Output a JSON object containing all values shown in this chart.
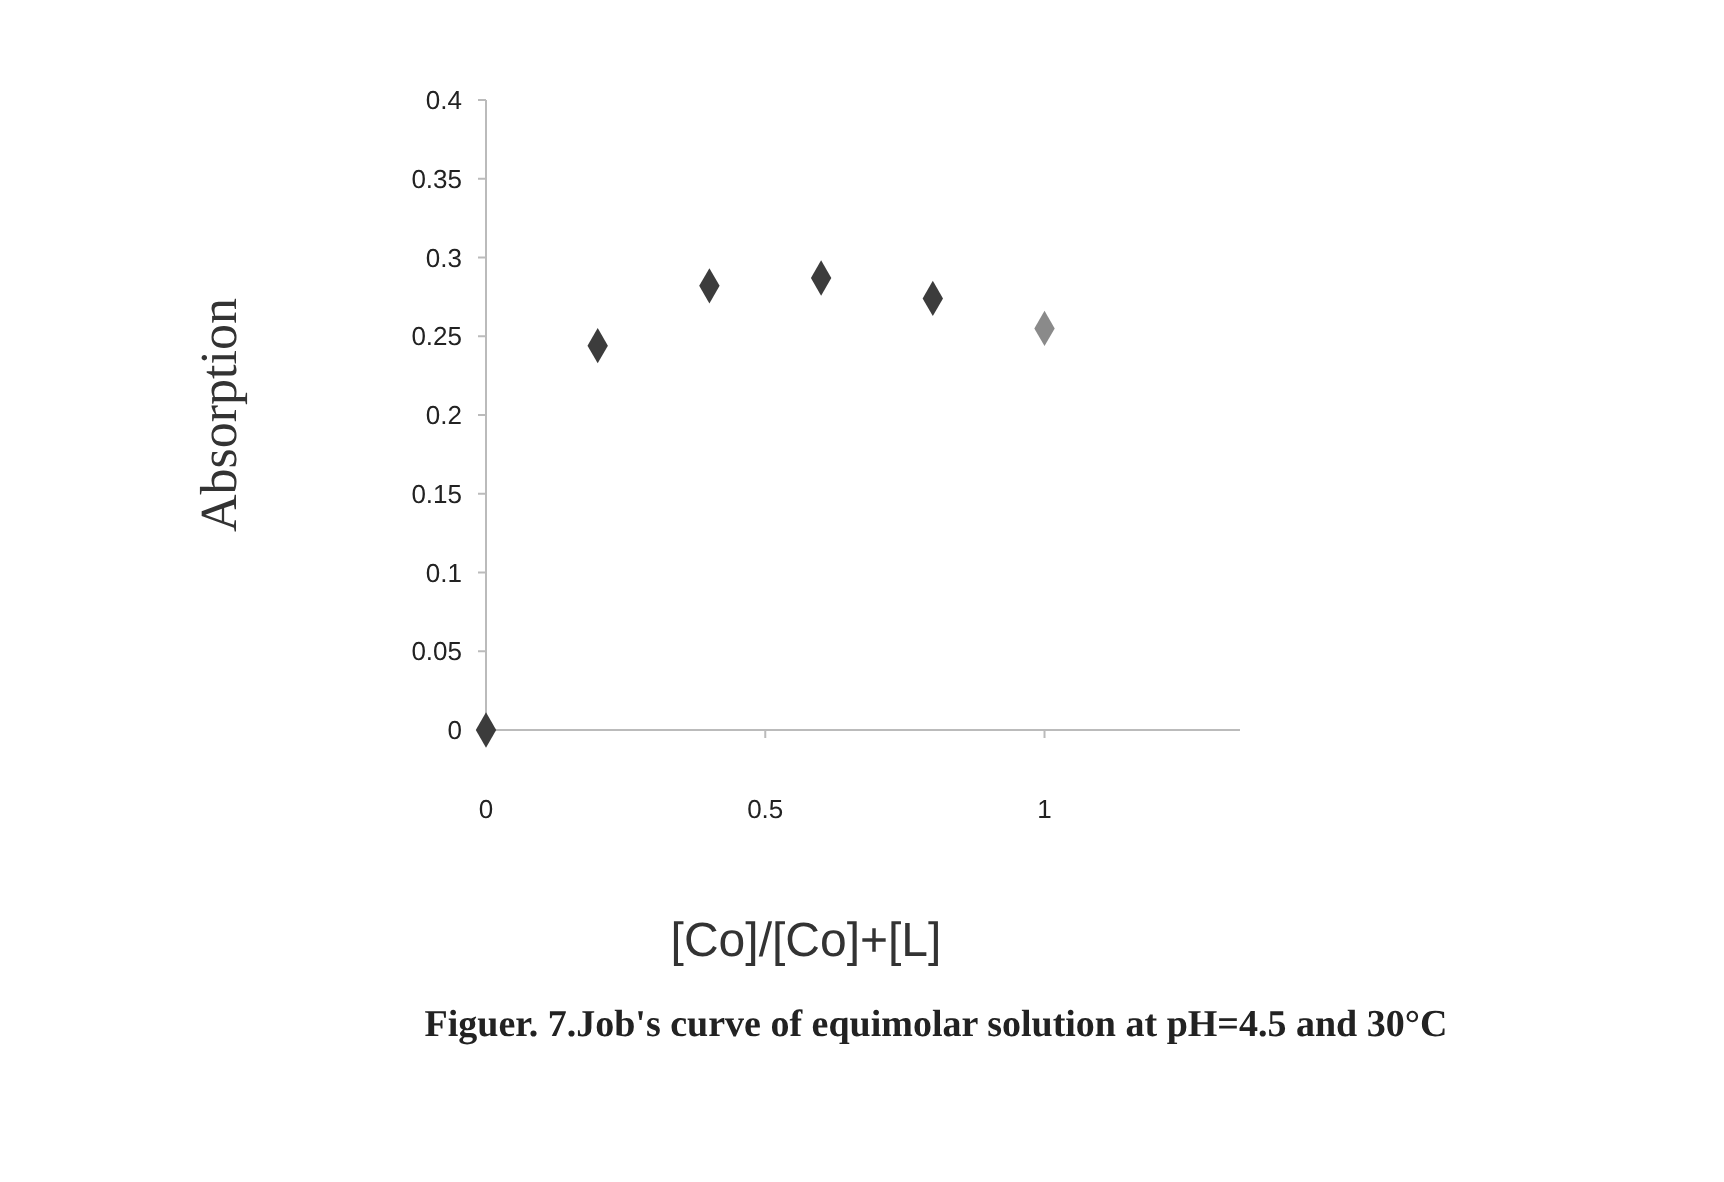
{
  "chart_data": {
    "type": "scatter",
    "title": "Figuer. 7.Job's curve of equimolar solution at pH=4.5 and 30°C",
    "xlabel": "[Co]/[Co]+[L]",
    "ylabel": "Absorption",
    "x": [
      0,
      0.2,
      0.4,
      0.6,
      0.8,
      1.0
    ],
    "values": [
      0,
      0.244,
      0.282,
      0.287,
      0.274,
      0.255
    ],
    "colors": [
      "#3c3c3c",
      "#3c3c3c",
      "#3c3c3c",
      "#3c3c3c",
      "#3c3c3c",
      "#8a8a8a"
    ],
    "xlim": [
      0,
      1.35
    ],
    "xticks": [
      0,
      0.5,
      1
    ],
    "ylim": [
      0,
      0.4
    ],
    "yticks": [
      0,
      0.05,
      0.1,
      0.15,
      0.2,
      0.25,
      0.3,
      0.35,
      0.4
    ],
    "marker": "diamond",
    "grid": false
  }
}
